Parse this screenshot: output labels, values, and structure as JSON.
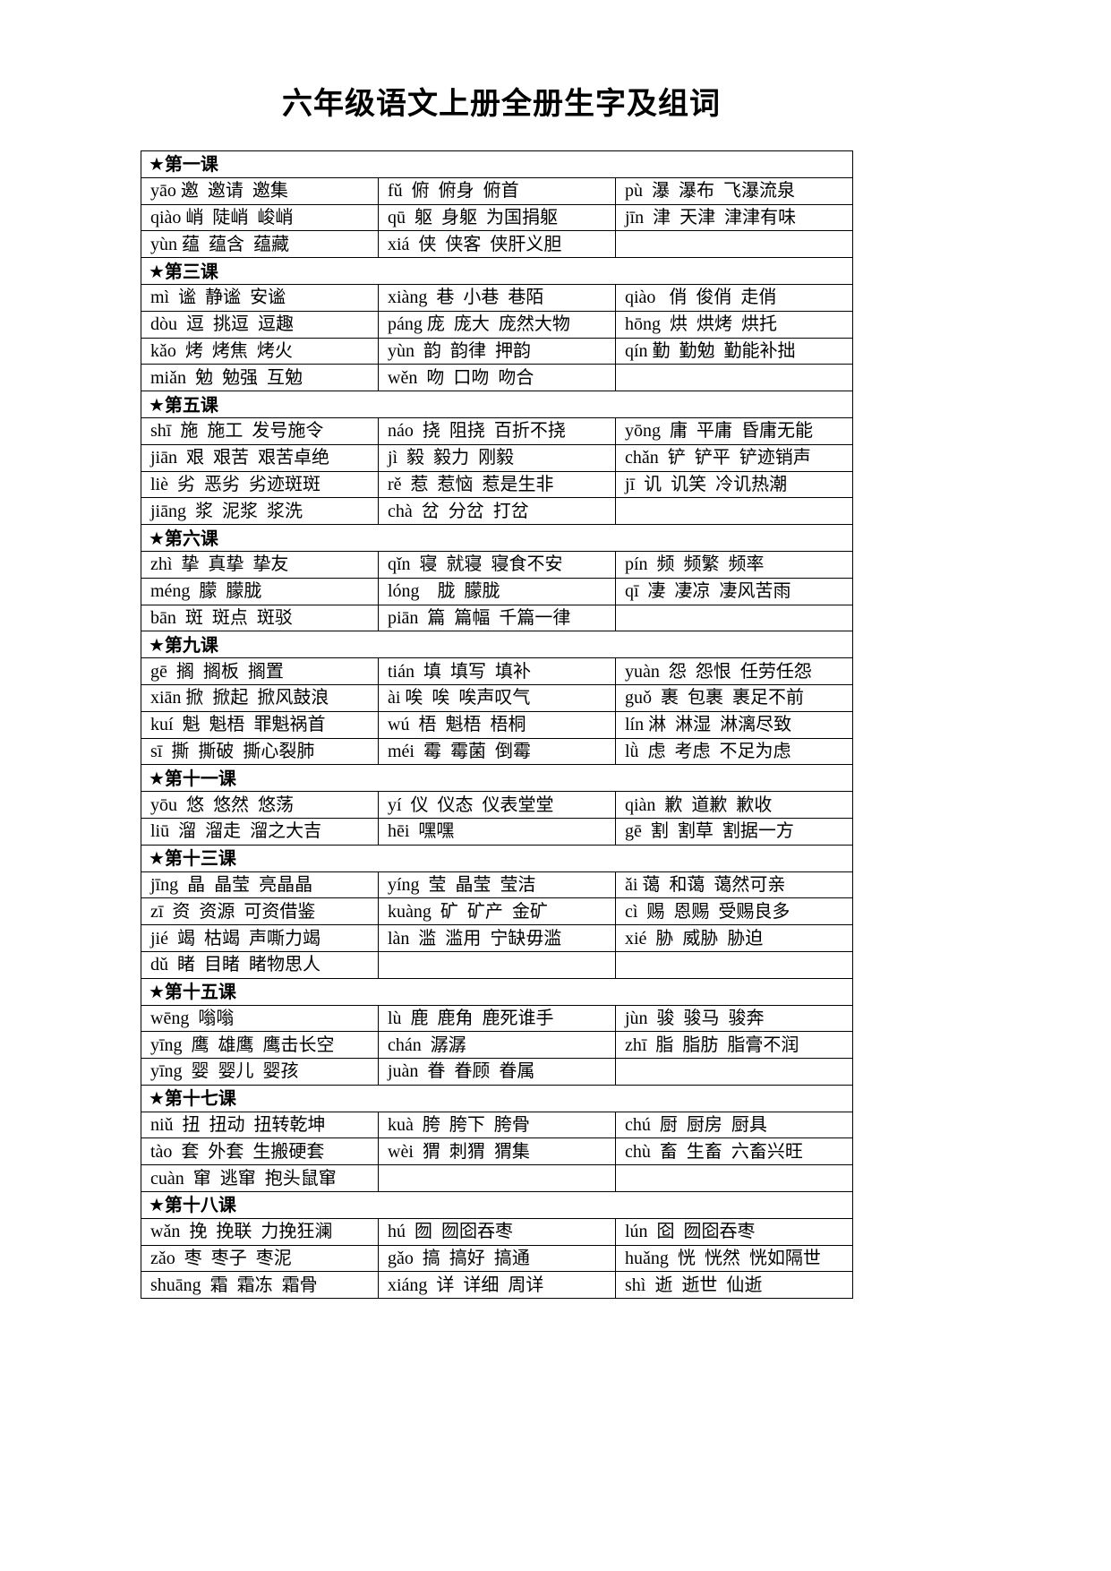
{
  "title": "六年级语文上册全册生字及组词",
  "lessons": [
    {
      "heading": "★第一课",
      "rows": [
        [
          "yāo 邀  邀请  邀集",
          "fǔ  俯  俯身  俯首",
          "pù  瀑  瀑布  飞瀑流泉"
        ],
        [
          "qiào 峭  陡峭  峻峭",
          "qū  躯  身躯  为国捐躯",
          "jīn  津  天津  津津有味"
        ],
        [
          "yùn 蕴  蕴含  蕴藏",
          "xiá  侠  侠客  侠肝义胆",
          ""
        ]
      ]
    },
    {
      "heading": "★第三课",
      "rows": [
        [
          "mì  谧  静谧  安谧",
          "xiàng  巷  小巷  巷陌",
          "qiào   俏  俊俏  走俏"
        ],
        [
          "dòu  逗  挑逗  逗趣",
          "páng 庞  庞大  庞然大物",
          "hōng  烘  烘烤  烘托"
        ],
        [
          "kǎo  烤  烤焦  烤火",
          "yùn  韵  韵律  押韵",
          "qín 勤  勤勉  勤能补拙"
        ],
        [
          "miǎn  勉  勉强  互勉",
          "wěn  吻  口吻  吻合",
          ""
        ]
      ]
    },
    {
      "heading": "★第五课",
      "rows": [
        [
          "shī  施  施工  发号施令",
          "náo  挠  阻挠  百折不挠",
          "yōng  庸  平庸  昏庸无能"
        ],
        [
          "jiān  艰  艰苦  艰苦卓绝",
          "jì  毅  毅力  刚毅",
          "chǎn  铲  铲平  铲迹销声"
        ],
        [
          "liè  劣  恶劣  劣迹斑斑",
          "rě  惹  惹恼  惹是生非",
          "jī  讥  讥笑  冷讥热潮"
        ],
        [
          "jiāng  浆  泥浆  浆洗",
          "chà  岔  分岔  打岔",
          ""
        ]
      ]
    },
    {
      "heading": "★第六课",
      "rows": [
        [
          "zhì  挚  真挚  挚友",
          "qǐn  寝  就寝  寝食不安",
          "pín  频  频繁  频率"
        ],
        [
          "méng  朦  朦胧",
          "lóng    胧  朦胧",
          "qī  凄  凄凉  凄风苦雨"
        ],
        [
          "bān  斑  斑点  斑驳",
          "piān  篇  篇幅  千篇一律",
          ""
        ]
      ]
    },
    {
      "heading": "★第九课",
      "rows": [
        [
          "gē  搁  搁板  搁置",
          "tián  填  填写  填补",
          "yuàn  怨  怨恨  任劳任怨"
        ],
        [
          "xiān 掀  掀起  掀风鼓浪",
          "ài 唉  唉  唉声叹气",
          "guǒ  裹  包裹  裹足不前"
        ],
        [
          "kuí  魁  魁梧  罪魁祸首",
          "wú  梧  魁梧  梧桐",
          "lín 淋  淋湿  淋漓尽致"
        ],
        [
          "sī  撕  撕破  撕心裂肺",
          "méi  霉  霉菌  倒霉",
          "lǜ  虑  考虑  不足为虑"
        ]
      ]
    },
    {
      "heading": "★第十一课",
      "rows": [
        [
          "yōu  悠  悠然  悠荡",
          "yí  仪  仪态  仪表堂堂",
          "qiàn  歉  道歉  歉收"
        ],
        [
          "liū  溜  溜走  溜之大吉",
          "hēi  嘿嘿",
          "gē  割  割草  割据一方"
        ]
      ]
    },
    {
      "heading": "★第十三课",
      "rows": [
        [
          "jīng  晶  晶莹  亮晶晶",
          "yíng  莹  晶莹  莹洁",
          "ǎi 蔼  和蔼  蔼然可亲"
        ],
        [
          "zī  资  资源  可资借鉴",
          "kuàng  矿  矿产  金矿",
          "cì  赐  恩赐  受赐良多"
        ],
        [
          "jié  竭  枯竭  声嘶力竭",
          "làn  滥  滥用  宁缺毋滥",
          "xié  胁  威胁  胁迫"
        ],
        [
          "dǔ  睹  目睹  睹物思人",
          "",
          ""
        ]
      ]
    },
    {
      "heading": "★第十五课",
      "rows": [
        [
          "wēng  嗡嗡",
          "lù  鹿  鹿角  鹿死谁手",
          "jùn  骏  骏马  骏奔"
        ],
        [
          "yīng  鹰  雄鹰  鹰击长空",
          "chán  潺潺",
          "zhī  脂  脂肪  脂膏不润"
        ],
        [
          "yīng  婴  婴儿  婴孩",
          "juàn  眷  眷顾  眷属",
          ""
        ]
      ]
    },
    {
      "heading": "★第十七课",
      "rows": [
        [
          "niǔ  扭  扭动  扭转乾坤",
          "kuà  胯  胯下  胯骨",
          "chú  厨  厨房  厨具"
        ],
        [
          "tào  套  外套  生搬硬套",
          "wèi  猬  刺猬  猬集",
          "chù  畜  生畜  六畜兴旺"
        ],
        [
          "cuàn  窜  逃窜  抱头鼠窜",
          "",
          ""
        ]
      ]
    },
    {
      "heading": "★第十八课",
      "rows": [
        [
          "wǎn  挽  挽联  力挽狂澜",
          "hú  囫  囫囵吞枣",
          "lún  囵  囫囵吞枣"
        ],
        [
          "zǎo  枣  枣子  枣泥",
          "gǎo  搞  搞好  搞通",
          "huǎng  恍  恍然  恍如隔世"
        ],
        [
          "shuāng  霜  霜冻  霜骨",
          "xiáng  详  详细  周详",
          "shì  逝  逝世  仙逝"
        ]
      ]
    }
  ]
}
